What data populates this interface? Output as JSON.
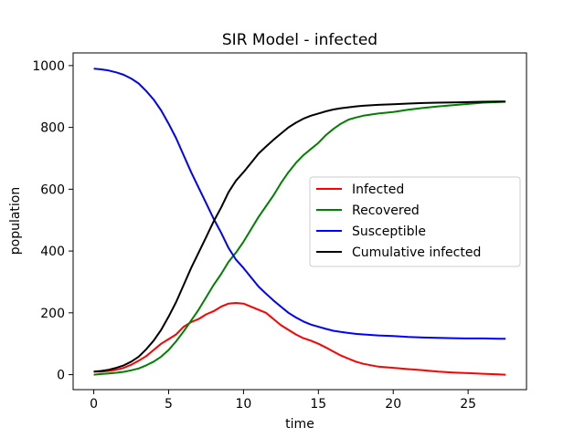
{
  "chart_data": {
    "type": "line",
    "title": "SIR Model - infected",
    "xlabel": "time",
    "ylabel": "population",
    "xlim": [
      -1.38,
      28.9
    ],
    "ylim": [
      -48.5,
      1041
    ],
    "xticks": [
      0,
      5,
      10,
      15,
      20,
      25
    ],
    "yticks": [
      0,
      200,
      400,
      600,
      800,
      1000
    ],
    "grid": false,
    "legend_position": "center-right",
    "series": [
      {
        "name": "Infected",
        "color": "#ff0000",
        "x": [
          0,
          0.5,
          1,
          1.5,
          2,
          2.5,
          3,
          3.5,
          4,
          4.5,
          5,
          5.5,
          6,
          6.5,
          7,
          7.5,
          8,
          8.5,
          9,
          9.5,
          10,
          10.5,
          11,
          11.5,
          12,
          12.5,
          13,
          13.5,
          14,
          14.5,
          15,
          15.5,
          16,
          16.5,
          17,
          17.5,
          18,
          19,
          20,
          21,
          22,
          23,
          24,
          25,
          26,
          27,
          27.5
        ],
        "y": [
          10,
          10,
          12,
          16,
          22,
          32,
          45,
          60,
          80,
          100,
          115,
          130,
          155,
          170,
          180,
          195,
          205,
          220,
          230,
          232,
          230,
          220,
          210,
          200,
          180,
          160,
          145,
          130,
          118,
          110,
          100,
          88,
          75,
          62,
          52,
          42,
          35,
          26,
          22,
          18,
          14,
          10,
          7,
          5,
          3,
          1,
          0
        ]
      },
      {
        "name": "Recovered",
        "color": "#008000",
        "x": [
          0,
          0.5,
          1,
          1.5,
          2,
          2.5,
          3,
          3.5,
          4,
          4.5,
          5,
          5.5,
          6,
          6.5,
          7,
          7.5,
          8,
          8.5,
          9,
          9.5,
          10,
          10.5,
          11,
          11.5,
          12,
          12.5,
          13,
          13.5,
          14,
          14.5,
          15,
          15.5,
          16,
          16.5,
          17,
          17.5,
          18,
          19,
          20,
          21,
          22,
          23,
          24,
          25,
          26,
          27,
          27.5
        ],
        "y": [
          0,
          2,
          4,
          6,
          9,
          14,
          20,
          30,
          42,
          58,
          80,
          108,
          140,
          175,
          210,
          250,
          290,
          325,
          365,
          395,
          430,
          470,
          510,
          545,
          580,
          620,
          655,
          685,
          710,
          730,
          750,
          775,
          795,
          812,
          825,
          832,
          838,
          845,
          850,
          857,
          863,
          868,
          872,
          876,
          880,
          882,
          883
        ]
      },
      {
        "name": "Susceptible",
        "color": "#0000ff",
        "x": [
          0,
          0.5,
          1,
          1.5,
          2,
          2.5,
          3,
          3.5,
          4,
          4.5,
          5,
          5.5,
          6,
          6.5,
          7,
          7.5,
          8,
          8.5,
          9,
          9.5,
          10,
          10.5,
          11,
          11.5,
          12,
          12.5,
          13,
          13.5,
          14,
          14.5,
          15,
          15.5,
          16,
          16.5,
          17,
          17.5,
          18,
          19,
          20,
          21,
          22,
          23,
          24,
          25,
          26,
          27,
          27.5
        ],
        "y": [
          990,
          988,
          984,
          978,
          970,
          958,
          942,
          918,
          890,
          855,
          812,
          765,
          710,
          655,
          605,
          555,
          505,
          460,
          410,
          372,
          345,
          315,
          285,
          262,
          240,
          220,
          200,
          185,
          172,
          162,
          155,
          148,
          142,
          138,
          135,
          132,
          130,
          127,
          125,
          122,
          120,
          119,
          118,
          117,
          117,
          116,
          116
        ]
      },
      {
        "name": "Cumulative infected",
        "color": "#000000",
        "x": [
          0,
          0.5,
          1,
          1.5,
          2,
          2.5,
          3,
          3.5,
          4,
          4.5,
          5,
          5.5,
          6,
          6.5,
          7,
          7.5,
          8,
          8.5,
          9,
          9.5,
          10,
          10.5,
          11,
          11.5,
          12,
          12.5,
          13,
          13.5,
          14,
          14.5,
          15,
          15.5,
          16,
          16.5,
          17,
          17.5,
          18,
          19,
          20,
          21,
          22,
          23,
          24,
          25,
          26,
          27,
          27.5
        ],
        "y": [
          10,
          12,
          16,
          22,
          30,
          42,
          58,
          82,
          110,
          145,
          188,
          235,
          290,
          345,
          395,
          445,
          495,
          540,
          590,
          628,
          655,
          685,
          715,
          738,
          760,
          780,
          800,
          815,
          828,
          838,
          845,
          852,
          858,
          862,
          865,
          868,
          870,
          873,
          875,
          877,
          879,
          880,
          881,
          882,
          883,
          884,
          884
        ]
      }
    ]
  }
}
